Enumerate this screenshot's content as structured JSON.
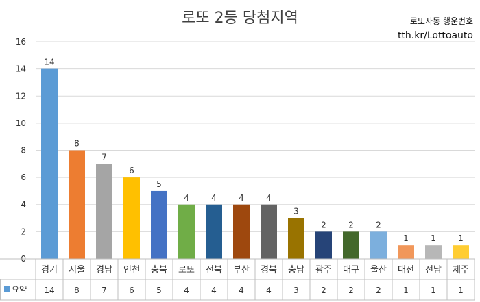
{
  "header": {
    "watermark_line1": "로또자동 행운번호",
    "watermark_line2": "tth.kr/Lottoauto"
  },
  "chart_data": {
    "type": "bar",
    "title": "로또 2등 당첨지역",
    "categories": [
      "경기",
      "서울",
      "경남",
      "인천",
      "충북",
      "로또",
      "전북",
      "부산",
      "경북",
      "충남",
      "광주",
      "대구",
      "울산",
      "대전",
      "전남",
      "제주"
    ],
    "series": [
      {
        "name": "요약",
        "values": [
          14,
          8,
          7,
          6,
          5,
          4,
          4,
          4,
          4,
          3,
          2,
          2,
          2,
          1,
          1,
          1
        ]
      }
    ],
    "colors": [
      "#5B9BD5",
      "#ED7D31",
      "#A5A5A5",
      "#FFC000",
      "#4472C4",
      "#70AD47",
      "#255E91",
      "#9E480E",
      "#636363",
      "#997300",
      "#264478",
      "#43682B",
      "#7CAFDD",
      "#F1975A",
      "#B7B7B7",
      "#FFCD33"
    ],
    "legend_color": "#5B9BD5",
    "ylim": [
      0,
      16
    ],
    "yticks": [
      0,
      2,
      4,
      6,
      8,
      10,
      12,
      14,
      16
    ],
    "grid": true,
    "data_table": true
  }
}
